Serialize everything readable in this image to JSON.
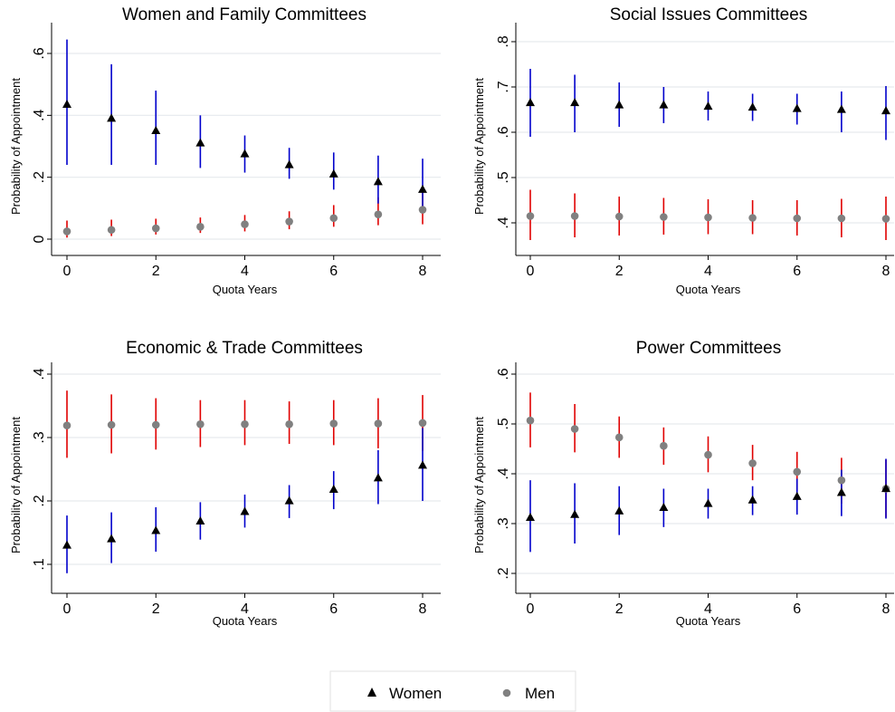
{
  "chart_data": [
    {
      "type": "scatter",
      "title": "Women and Family Committees",
      "xlabel": "Quota Years",
      "ylabel": "Probability of Appointment",
      "xlim": [
        0,
        8
      ],
      "ylim": [
        0,
        0.6
      ],
      "xticks": [
        0,
        2,
        4,
        6,
        8
      ],
      "xtick_labels": [
        "0",
        "2",
        "4",
        "6",
        "8"
      ],
      "yticks": [
        0,
        0.2,
        0.4,
        0.6
      ],
      "ytick_labels": [
        "0",
        ".2",
        ".4",
        ".6"
      ],
      "grid": true,
      "series": [
        {
          "name": "Women",
          "marker": "triangle",
          "color": "#000000",
          "ci_color": "#0000cc",
          "x": [
            0,
            1,
            2,
            3,
            4,
            5,
            6,
            7,
            8
          ],
          "values": [
            0.435,
            0.39,
            0.35,
            0.31,
            0.275,
            0.24,
            0.21,
            0.185,
            0.16
          ],
          "ci_low": [
            0.24,
            0.24,
            0.24,
            0.23,
            0.215,
            0.195,
            0.16,
            0.115,
            0.09
          ],
          "ci_high": [
            0.645,
            0.565,
            0.48,
            0.4,
            0.335,
            0.295,
            0.28,
            0.27,
            0.26
          ]
        },
        {
          "name": "Men",
          "marker": "circle",
          "color": "#808080",
          "ci_color": "#e00000",
          "x": [
            0,
            1,
            2,
            3,
            4,
            5,
            6,
            7,
            8
          ],
          "values": [
            0.025,
            0.03,
            0.035,
            0.04,
            0.048,
            0.057,
            0.068,
            0.08,
            0.095
          ],
          "ci_low": [
            0.005,
            0.01,
            0.015,
            0.02,
            0.025,
            0.032,
            0.04,
            0.045,
            0.048
          ],
          "ci_high": [
            0.06,
            0.063,
            0.066,
            0.07,
            0.078,
            0.09,
            0.11,
            0.135,
            0.165
          ]
        }
      ]
    },
    {
      "type": "scatter",
      "title": "Social Issues Committees",
      "xlabel": "Quota Years",
      "ylabel": "Probability of Appointment",
      "xlim": [
        0,
        8
      ],
      "ylim": [
        0.36,
        0.8
      ],
      "xticks": [
        0,
        2,
        4,
        6,
        8
      ],
      "xtick_labels": [
        "0",
        "2",
        "4",
        "6",
        "8"
      ],
      "yticks": [
        0.4,
        0.5,
        0.6,
        0.7,
        0.8
      ],
      "ytick_labels": [
        ".4",
        ".5",
        ".6",
        ".7",
        ".8"
      ],
      "grid": true,
      "series": [
        {
          "name": "Women",
          "marker": "triangle",
          "color": "#000000",
          "ci_color": "#0000cc",
          "x": [
            0,
            1,
            2,
            3,
            4,
            5,
            6,
            7,
            8
          ],
          "values": [
            0.665,
            0.665,
            0.66,
            0.66,
            0.657,
            0.655,
            0.652,
            0.65,
            0.647
          ],
          "ci_low": [
            0.59,
            0.6,
            0.612,
            0.62,
            0.626,
            0.625,
            0.617,
            0.6,
            0.583
          ],
          "ci_high": [
            0.74,
            0.727,
            0.71,
            0.7,
            0.69,
            0.685,
            0.685,
            0.69,
            0.702
          ]
        },
        {
          "name": "Men",
          "marker": "circle",
          "color": "#808080",
          "ci_color": "#e00000",
          "x": [
            0,
            1,
            2,
            3,
            4,
            5,
            6,
            7,
            8
          ],
          "values": [
            0.415,
            0.415,
            0.414,
            0.413,
            0.412,
            0.411,
            0.41,
            0.41,
            0.409
          ],
          "ci_low": [
            0.362,
            0.368,
            0.372,
            0.374,
            0.375,
            0.375,
            0.372,
            0.368,
            0.362
          ],
          "ci_high": [
            0.473,
            0.465,
            0.458,
            0.455,
            0.452,
            0.45,
            0.45,
            0.453,
            0.458
          ]
        }
      ]
    },
    {
      "type": "scatter",
      "title": "Economic & Trade Committees",
      "xlabel": "Quota Years",
      "ylabel": "Probability of Appointment",
      "xlim": [
        0,
        8
      ],
      "ylim": [
        0.09,
        0.4
      ],
      "xticks": [
        0,
        2,
        4,
        6,
        8
      ],
      "xtick_labels": [
        "0",
        "2",
        "4",
        "6",
        "8"
      ],
      "yticks": [
        0.1,
        0.2,
        0.3,
        0.4
      ],
      "ytick_labels": [
        ".1",
        ".2",
        ".3",
        ".4"
      ],
      "grid": true,
      "series": [
        {
          "name": "Women",
          "marker": "triangle",
          "color": "#000000",
          "ci_color": "#0000cc",
          "x": [
            0,
            1,
            2,
            3,
            4,
            5,
            6,
            7,
            8
          ],
          "values": [
            0.13,
            0.14,
            0.153,
            0.168,
            0.183,
            0.2,
            0.218,
            0.236,
            0.256
          ],
          "ci_low": [
            0.086,
            0.102,
            0.12,
            0.139,
            0.158,
            0.173,
            0.187,
            0.195,
            0.2
          ],
          "ci_high": [
            0.177,
            0.182,
            0.19,
            0.198,
            0.21,
            0.225,
            0.247,
            0.28,
            0.315
          ]
        },
        {
          "name": "Men",
          "marker": "circle",
          "color": "#808080",
          "ci_color": "#e00000",
          "x": [
            0,
            1,
            2,
            3,
            4,
            5,
            6,
            7,
            8
          ],
          "values": [
            0.319,
            0.32,
            0.32,
            0.321,
            0.321,
            0.321,
            0.322,
            0.322,
            0.323
          ],
          "ci_low": [
            0.268,
            0.275,
            0.281,
            0.285,
            0.288,
            0.29,
            0.288,
            0.283,
            0.279
          ],
          "ci_high": [
            0.374,
            0.368,
            0.362,
            0.359,
            0.359,
            0.357,
            0.359,
            0.362,
            0.367
          ]
        }
      ]
    },
    {
      "type": "scatter",
      "title": "Power Committees",
      "xlabel": "Quota Years",
      "ylabel": "Probability of Appointment",
      "xlim": [
        0,
        8
      ],
      "ylim": [
        0.18,
        0.6
      ],
      "xticks": [
        0,
        2,
        4,
        6,
        8
      ],
      "xtick_labels": [
        "0",
        "2",
        "4",
        "6",
        "8"
      ],
      "yticks": [
        0.2,
        0.3,
        0.4,
        0.5,
        0.6
      ],
      "ytick_labels": [
        ".2",
        ".3",
        ".4",
        ".5",
        ".6"
      ],
      "grid": true,
      "series": [
        {
          "name": "Women",
          "marker": "triangle",
          "color": "#000000",
          "ci_color": "#0000cc",
          "x": [
            0,
            1,
            2,
            3,
            4,
            5,
            6,
            7,
            8
          ],
          "values": [
            0.312,
            0.318,
            0.325,
            0.332,
            0.34,
            0.347,
            0.354,
            0.362,
            0.37
          ],
          "ci_low": [
            0.243,
            0.26,
            0.277,
            0.293,
            0.31,
            0.317,
            0.318,
            0.315,
            0.31
          ],
          "ci_high": [
            0.387,
            0.381,
            0.375,
            0.37,
            0.37,
            0.375,
            0.39,
            0.408,
            0.43
          ]
        },
        {
          "name": "Men",
          "marker": "circle",
          "color": "#808080",
          "ci_color": "#e00000",
          "x": [
            0,
            1,
            2,
            3,
            4,
            5,
            6,
            7,
            8
          ],
          "values": [
            0.507,
            0.49,
            0.473,
            0.456,
            0.438,
            0.421,
            0.404,
            0.387,
            0.37
          ],
          "ci_low": [
            0.453,
            0.443,
            0.432,
            0.418,
            0.403,
            0.387,
            0.365,
            0.34,
            0.312
          ],
          "ci_high": [
            0.563,
            0.54,
            0.515,
            0.493,
            0.475,
            0.458,
            0.444,
            0.432,
            0.428
          ]
        }
      ]
    }
  ],
  "legend": {
    "items": [
      {
        "label": "Women",
        "marker": "triangle",
        "color": "#000000"
      },
      {
        "label": "Men",
        "marker": "circle",
        "color": "#808080"
      }
    ]
  }
}
